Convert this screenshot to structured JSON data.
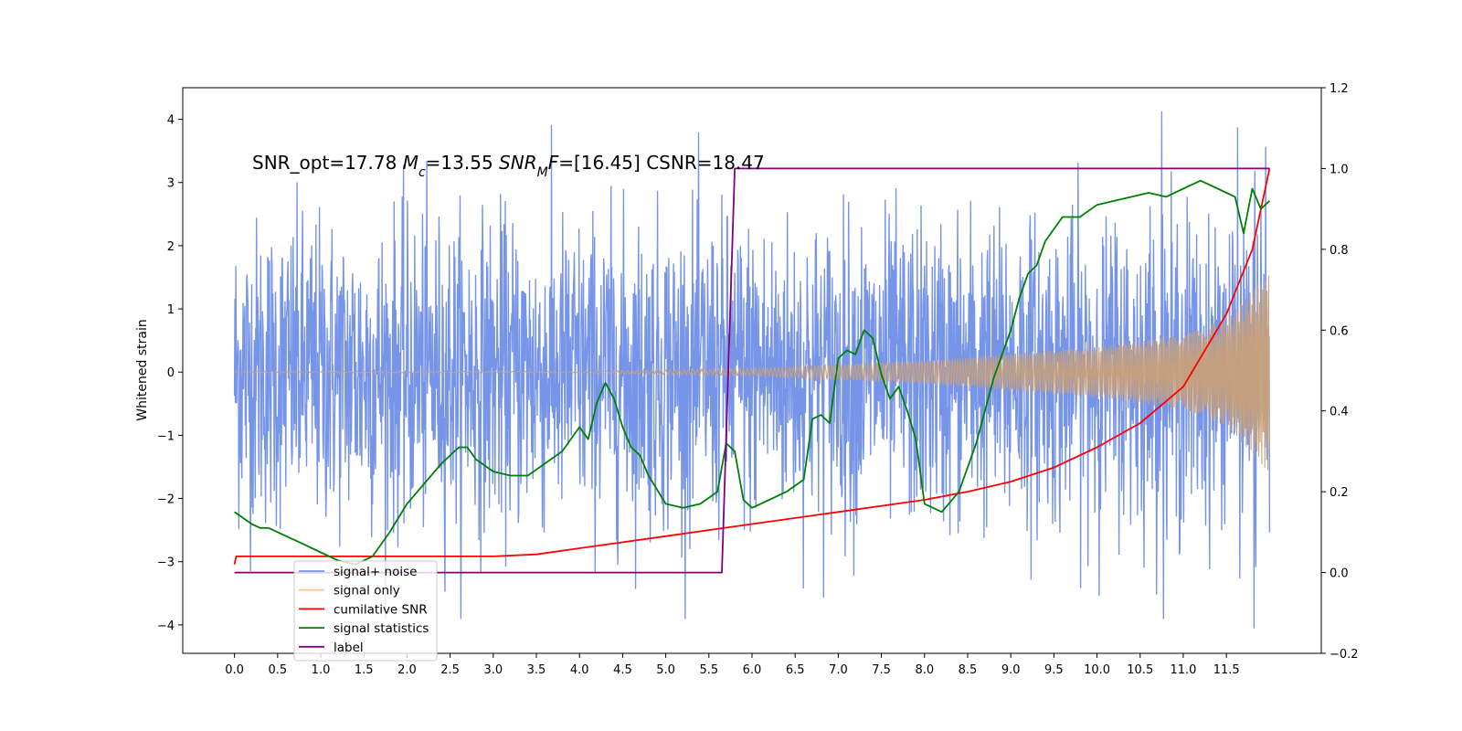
{
  "chart_data": {
    "type": "line",
    "ylabel": "Whitened strain",
    "annotation": "SNR_opt=17.78 Mc=13.55 SNRMF=[16.45] CSNR=18.47",
    "annotation_parts": [
      "SNR_opt=17.78 ",
      "M",
      "c",
      "=13.55 ",
      "SNR",
      "M",
      "F",
      "=[16.45] CSNR=18.47"
    ],
    "xlim": [
      -0.6,
      12.6
    ],
    "ylim_left": [
      -4.45,
      4.5
    ],
    "ylim_right": [
      -0.2,
      1.2
    ],
    "x_ticks": [
      0.0,
      0.5,
      1.0,
      1.5,
      2.0,
      2.5,
      3.0,
      3.5,
      4.0,
      4.5,
      5.0,
      5.5,
      6.0,
      6.5,
      7.0,
      7.5,
      8.0,
      8.5,
      9.0,
      9.5,
      10.0,
      10.5,
      11.0,
      11.5
    ],
    "x_tick_labels": [
      "0.0",
      "0.5",
      "1.0",
      "1.5",
      "2.0",
      "2.5",
      "3.0",
      "3.5",
      "4.0",
      "4.5",
      "5.0",
      "5.5",
      "6.0",
      "6.5",
      "7.0",
      "7.5",
      "8.0",
      "8.5",
      "9.0",
      "9.5",
      "10.0",
      "10.5",
      "11.0",
      "11.5"
    ],
    "y_left_ticks": [
      -4,
      -3,
      -2,
      -1,
      0,
      1,
      2,
      3,
      4
    ],
    "y_left_tick_labels": [
      "−4",
      "−3",
      "−2",
      "−1",
      "0",
      "1",
      "2",
      "3",
      "4"
    ],
    "y_right_ticks": [
      -0.2,
      0.0,
      0.2,
      0.4,
      0.6,
      0.8,
      1.0,
      1.2
    ],
    "y_right_tick_labels": [
      "−0.2",
      "0.0",
      "0.2",
      "0.4",
      "0.6",
      "0.8",
      "1.0",
      "1.2"
    ],
    "legend": {
      "location": "lower-left",
      "entries": [
        {
          "label": "signal+ noise",
          "color": "#7795e8"
        },
        {
          "label": "signal only",
          "color": "#f5c98d"
        },
        {
          "label": "cumilative SNR",
          "color": "#ff0000"
        },
        {
          "label": "signal statistics",
          "color": "#008000"
        },
        {
          "label": "label",
          "color": "#800080"
        }
      ]
    },
    "series": [
      {
        "name": "signal+ noise",
        "axis": "left",
        "color": "#7795e8",
        "x_range": [
          0.0,
          12.0
        ],
        "envelope_typical": [
          -2.5,
          2.5
        ],
        "extremes": {
          "max": 4.12,
          "min": -4.05
        }
      },
      {
        "name": "signal only",
        "axis": "left",
        "color": "#c8a07a",
        "x_range": [
          0.0,
          12.0
        ],
        "amplitude_x": [
          0.05,
          4.0,
          6.0,
          8.0,
          10.0,
          11.0,
          11.5,
          12.0
        ],
        "amplitude": [
          0.01,
          0.01,
          0.06,
          0.18,
          0.4,
          0.6,
          0.85,
          1.6
        ]
      },
      {
        "name": "cumilative SNR",
        "axis": "right",
        "color": "#ff0000",
        "x": [
          0.0,
          0.02,
          1.0,
          2.0,
          3.0,
          3.5,
          4.0,
          5.0,
          6.0,
          7.0,
          8.0,
          8.5,
          9.0,
          9.5,
          10.0,
          10.5,
          11.0,
          11.5,
          11.8,
          12.0
        ],
        "y": [
          0.02,
          0.04,
          0.04,
          0.04,
          0.04,
          0.045,
          0.06,
          0.09,
          0.12,
          0.15,
          0.18,
          0.2,
          0.225,
          0.26,
          0.31,
          0.37,
          0.46,
          0.64,
          0.8,
          1.0
        ]
      },
      {
        "name": "signal statistics",
        "axis": "right",
        "color": "#008000",
        "x": [
          0.0,
          0.2,
          0.3,
          0.4,
          0.5,
          0.6,
          0.8,
          1.0,
          1.2,
          1.4,
          1.6,
          1.8,
          2.0,
          2.2,
          2.4,
          2.6,
          2.7,
          2.8,
          3.0,
          3.2,
          3.4,
          3.6,
          3.8,
          4.0,
          4.1,
          4.2,
          4.3,
          4.4,
          4.5,
          4.6,
          4.7,
          4.8,
          5.0,
          5.2,
          5.4,
          5.6,
          5.7,
          5.8,
          5.9,
          6.0,
          6.2,
          6.4,
          6.6,
          6.7,
          6.8,
          6.9,
          7.0,
          7.1,
          7.2,
          7.3,
          7.4,
          7.5,
          7.6,
          7.7,
          7.8,
          7.9,
          8.0,
          8.2,
          8.4,
          8.6,
          8.8,
          9.0,
          9.1,
          9.2,
          9.3,
          9.4,
          9.6,
          9.8,
          10.0,
          10.2,
          10.4,
          10.6,
          10.8,
          11.0,
          11.2,
          11.4,
          11.6,
          11.7,
          11.8,
          11.9,
          12.0
        ],
        "y": [
          0.15,
          0.12,
          0.11,
          0.11,
          0.1,
          0.09,
          0.07,
          0.05,
          0.03,
          0.02,
          0.04,
          0.1,
          0.17,
          0.22,
          0.27,
          0.31,
          0.31,
          0.28,
          0.25,
          0.24,
          0.24,
          0.27,
          0.3,
          0.36,
          0.33,
          0.42,
          0.47,
          0.43,
          0.36,
          0.31,
          0.29,
          0.24,
          0.17,
          0.16,
          0.17,
          0.2,
          0.32,
          0.3,
          0.18,
          0.16,
          0.18,
          0.2,
          0.23,
          0.38,
          0.39,
          0.37,
          0.53,
          0.55,
          0.54,
          0.6,
          0.58,
          0.49,
          0.43,
          0.46,
          0.4,
          0.33,
          0.17,
          0.15,
          0.2,
          0.32,
          0.48,
          0.6,
          0.68,
          0.74,
          0.76,
          0.82,
          0.88,
          0.88,
          0.91,
          0.92,
          0.93,
          0.94,
          0.93,
          0.95,
          0.97,
          0.95,
          0.93,
          0.84,
          0.95,
          0.9,
          0.92
        ]
      },
      {
        "name": "label",
        "axis": "right",
        "color": "#800080",
        "x": [
          0.0,
          5.65,
          5.8,
          12.0
        ],
        "y": [
          0.0,
          0.0,
          1.0,
          1.0
        ]
      }
    ]
  }
}
